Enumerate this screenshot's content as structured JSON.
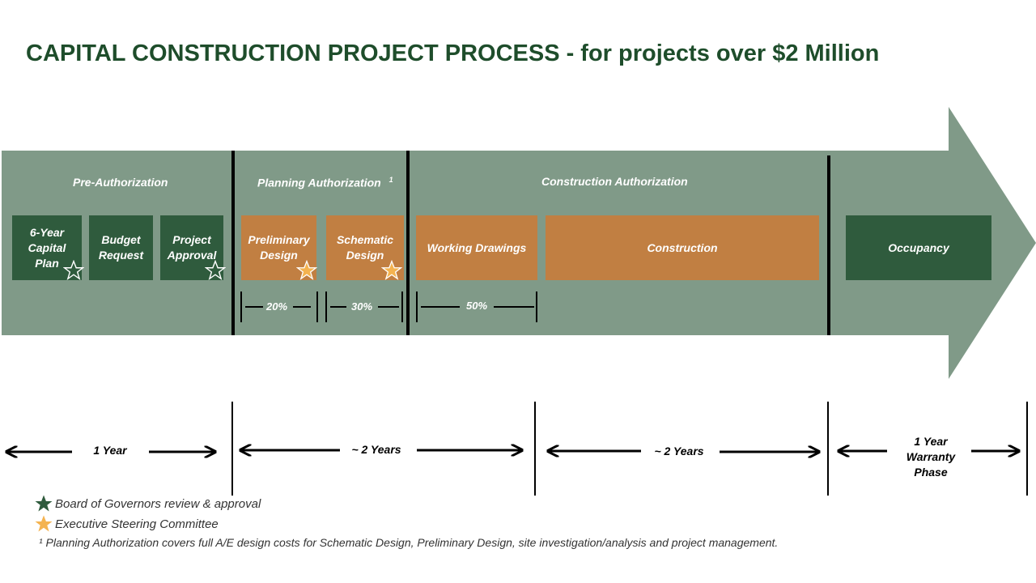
{
  "title": "CAPITAL CONSTRUCTION PROJECT PROCESS - for projects over $2 Million",
  "colors": {
    "arrow": "#809a88",
    "dark_green": "#2f5b3d",
    "orange": "#c17f42",
    "gold_star": "#f4b350",
    "title": "#1e4d2b"
  },
  "phases": {
    "pre_authorization": "Pre-Authorization",
    "planning_authorization": "Planning Authorization",
    "planning_footnote_mark": "1",
    "construction_authorization": "Construction Authorization"
  },
  "steps": {
    "capital_plan": "6-Year\nCapital\nPlan",
    "budget_request": "Budget\nRequest",
    "project_approval": "Project\nApproval",
    "preliminary_design": "Preliminary\nDesign",
    "schematic_design": "Schematic\nDesign",
    "working_drawings": "Working Drawings",
    "construction": "Construction",
    "occupancy": "Occupancy"
  },
  "design_percentages": {
    "preliminary": "20%",
    "schematic": "30%",
    "working_drawings": "50%"
  },
  "timeline": {
    "segment1": "1 Year",
    "segment2": "~ 2 Years",
    "segment3": "~ 2 Years",
    "segment4": "1 Year\nWarranty\nPhase"
  },
  "legend": {
    "board_of_governors": "Board of Governors review & approval",
    "executive_committee": "Executive Steering Committee",
    "footnote": "¹ Planning Authorization covers full A/E design costs for Schematic Design, Preliminary Design, site investigation/analysis and project management."
  }
}
